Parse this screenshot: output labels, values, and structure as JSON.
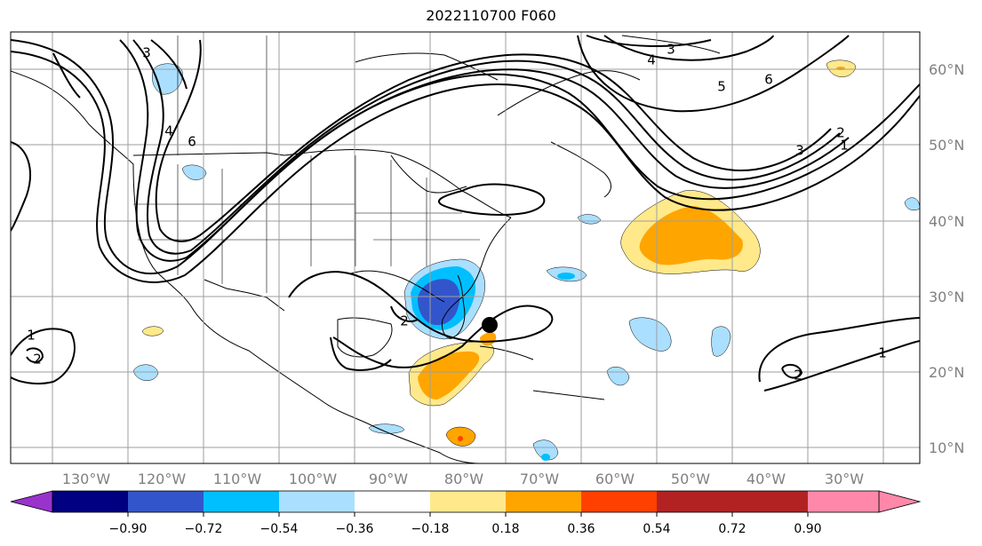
{
  "title": "2022110700 F060",
  "lat_labels": [
    "60°N",
    "50°N",
    "40°N",
    "30°N",
    "20°N",
    "10°N"
  ],
  "lon_labels": [
    "130°W",
    "120°W",
    "110°W",
    "100°W",
    "90°W",
    "80°W",
    "70°W",
    "60°W",
    "50°W",
    "40°W",
    "30°W"
  ],
  "colorbar": {
    "ticks": [
      "−0.90",
      "−0.72",
      "−0.54",
      "−0.36",
      "−0.18",
      "0.18",
      "0.36",
      "0.54",
      "0.72",
      "0.90"
    ],
    "colors": [
      "#9933cc",
      "#000080",
      "#3355cc",
      "#00bfff",
      "#aadfff",
      "#ffffff",
      "#ffe98a",
      "#ffa500",
      "#ff4000",
      "#b22222",
      "#ff88aa"
    ]
  },
  "contour_labels": [
    "3",
    "4",
    "6",
    "2",
    "1",
    "1",
    "1",
    "2",
    "3",
    "5",
    "6",
    "4",
    "3",
    "2",
    "2"
  ],
  "colors": {
    "contour": "#000000",
    "coast": "#000000",
    "grid": "#9e9e9e"
  }
}
